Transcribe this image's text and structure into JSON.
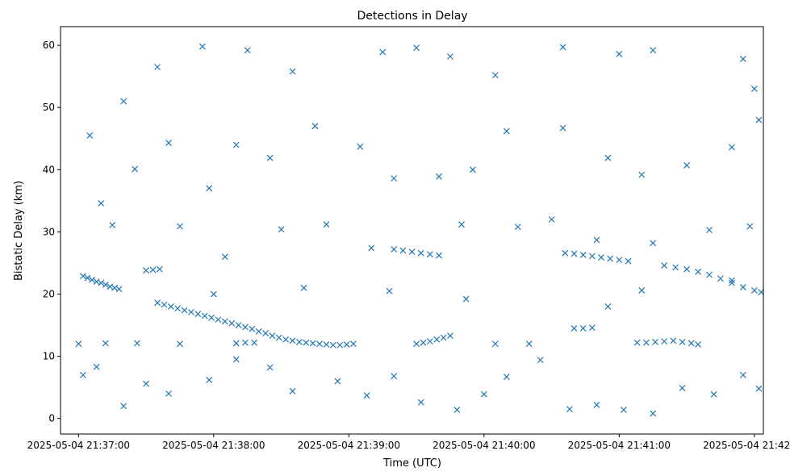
{
  "chart_data": {
    "type": "scatter",
    "title": "Detections in Delay",
    "xlabel": "Time (UTC)",
    "ylabel": "Bistatic Delay (km)",
    "marker": "x",
    "color": "#1f77b4",
    "grid": false,
    "xlim": [
      "2025-05-04 21:36:52",
      "2025-05-04 21:42:04"
    ],
    "ylim": [
      -2.5,
      63
    ],
    "xticks": [
      "2025-05-04 21:37:00",
      "2025-05-04 21:38:00",
      "2025-05-04 21:39:00",
      "2025-05-04 21:40:00",
      "2025-05-04 21:41:00",
      "2025-05-04 21:42:00"
    ],
    "yticks": [
      0,
      10,
      20,
      30,
      40,
      50,
      60
    ],
    "series": [
      {
        "points": [
          [
            "2025-05-04 21:37:02",
            22.9
          ],
          [
            "2025-05-04 21:37:04",
            22.6
          ],
          [
            "2025-05-04 21:37:06",
            22.3
          ],
          [
            "2025-05-04 21:37:08",
            22.0
          ],
          [
            "2025-05-04 21:37:10",
            21.8
          ],
          [
            "2025-05-04 21:37:12",
            21.5
          ],
          [
            "2025-05-04 21:37:14",
            21.2
          ],
          [
            "2025-05-04 21:37:16",
            21.0
          ],
          [
            "2025-05-04 21:37:18",
            20.8
          ],
          [
            "2025-05-04 21:37:35",
            18.6
          ],
          [
            "2025-05-04 21:37:38",
            18.3
          ],
          [
            "2025-05-04 21:37:41",
            18.0
          ],
          [
            "2025-05-04 21:37:44",
            17.7
          ],
          [
            "2025-05-04 21:37:47",
            17.4
          ],
          [
            "2025-05-04 21:37:50",
            17.1
          ],
          [
            "2025-05-04 21:37:53",
            16.8
          ],
          [
            "2025-05-04 21:37:56",
            16.5
          ],
          [
            "2025-05-04 21:37:59",
            16.2
          ],
          [
            "2025-05-04 21:38:02",
            15.9
          ],
          [
            "2025-05-04 21:38:05",
            15.6
          ],
          [
            "2025-05-04 21:38:08",
            15.3
          ],
          [
            "2025-05-04 21:38:11",
            15.0
          ],
          [
            "2025-05-04 21:38:14",
            14.7
          ],
          [
            "2025-05-04 21:38:17",
            14.4
          ],
          [
            "2025-05-04 21:38:20",
            14.0
          ],
          [
            "2025-05-04 21:38:23",
            13.7
          ],
          [
            "2025-05-04 21:38:26",
            13.3
          ],
          [
            "2025-05-04 21:38:29",
            13.0
          ],
          [
            "2025-05-04 21:38:32",
            12.7
          ],
          [
            "2025-05-04 21:38:35",
            12.5
          ],
          [
            "2025-05-04 21:38:38",
            12.3
          ],
          [
            "2025-05-04 21:38:41",
            12.2
          ],
          [
            "2025-05-04 21:38:44",
            12.1
          ],
          [
            "2025-05-04 21:38:47",
            12.0
          ],
          [
            "2025-05-04 21:38:50",
            11.9
          ],
          [
            "2025-05-04 21:38:53",
            11.8
          ],
          [
            "2025-05-04 21:38:56",
            11.8
          ],
          [
            "2025-05-04 21:38:59",
            11.9
          ],
          [
            "2025-05-04 21:39:02",
            12.0
          ],
          [
            "2025-05-04 21:39:30",
            12.0
          ],
          [
            "2025-05-04 21:39:33",
            12.2
          ],
          [
            "2025-05-04 21:39:36",
            12.4
          ],
          [
            "2025-05-04 21:39:39",
            12.7
          ],
          [
            "2025-05-04 21:39:42",
            13.0
          ],
          [
            "2025-05-04 21:39:45",
            13.3
          ],
          [
            "2025-05-04 21:37:30",
            23.8
          ],
          [
            "2025-05-04 21:37:33",
            23.9
          ],
          [
            "2025-05-04 21:37:36",
            24.0
          ],
          [
            "2025-05-04 21:38:10",
            12.1
          ],
          [
            "2025-05-04 21:38:14",
            12.2
          ],
          [
            "2025-05-04 21:38:18",
            12.2
          ],
          [
            "2025-05-04 21:39:20",
            27.2
          ],
          [
            "2025-05-04 21:39:24",
            27.0
          ],
          [
            "2025-05-04 21:39:28",
            26.8
          ],
          [
            "2025-05-04 21:39:32",
            26.6
          ],
          [
            "2025-05-04 21:39:36",
            26.4
          ],
          [
            "2025-05-04 21:39:40",
            26.2
          ],
          [
            "2025-05-04 21:40:36",
            26.6
          ],
          [
            "2025-05-04 21:40:40",
            26.5
          ],
          [
            "2025-05-04 21:40:44",
            26.3
          ],
          [
            "2025-05-04 21:40:48",
            26.1
          ],
          [
            "2025-05-04 21:40:52",
            25.9
          ],
          [
            "2025-05-04 21:40:56",
            25.7
          ],
          [
            "2025-05-04 21:41:00",
            25.5
          ],
          [
            "2025-05-04 21:41:04",
            25.3
          ],
          [
            "2025-05-04 21:40:40",
            14.5
          ],
          [
            "2025-05-04 21:40:44",
            14.5
          ],
          [
            "2025-05-04 21:40:48",
            14.6
          ],
          [
            "2025-05-04 21:41:08",
            12.2
          ],
          [
            "2025-05-04 21:41:12",
            12.2
          ],
          [
            "2025-05-04 21:41:16",
            12.3
          ],
          [
            "2025-05-04 21:41:20",
            12.4
          ],
          [
            "2025-05-04 21:41:24",
            12.5
          ],
          [
            "2025-05-04 21:41:28",
            12.3
          ],
          [
            "2025-05-04 21:41:32",
            12.1
          ],
          [
            "2025-05-04 21:41:20",
            24.6
          ],
          [
            "2025-05-04 21:41:25",
            24.3
          ],
          [
            "2025-05-04 21:41:30",
            24.0
          ],
          [
            "2025-05-04 21:41:35",
            23.6
          ],
          [
            "2025-05-04 21:41:40",
            23.1
          ],
          [
            "2025-05-04 21:41:45",
            22.5
          ],
          [
            "2025-05-04 21:41:50",
            21.8
          ],
          [
            "2025-05-04 21:41:55",
            21.1
          ],
          [
            "2025-05-04 21:42:00",
            20.6
          ],
          [
            "2025-05-04 21:42:03",
            20.3
          ],
          [
            "2025-05-04 21:37:05",
            45.5
          ],
          [
            "2025-05-04 21:37:20",
            51.0
          ],
          [
            "2025-05-04 21:37:35",
            56.5
          ],
          [
            "2025-05-04 21:37:55",
            59.8
          ],
          [
            "2025-05-04 21:38:15",
            59.2
          ],
          [
            "2025-05-04 21:38:35",
            55.8
          ],
          [
            "2025-05-04 21:39:15",
            58.9
          ],
          [
            "2025-05-04 21:39:30",
            59.6
          ],
          [
            "2025-05-04 21:39:45",
            58.2
          ],
          [
            "2025-05-04 21:40:05",
            55.2
          ],
          [
            "2025-05-04 21:40:35",
            59.7
          ],
          [
            "2025-05-04 21:41:00",
            58.6
          ],
          [
            "2025-05-04 21:41:15",
            59.2
          ],
          [
            "2025-05-04 21:41:55",
            57.8
          ],
          [
            "2025-05-04 21:42:00",
            53.0
          ],
          [
            "2025-05-04 21:37:10",
            34.6
          ],
          [
            "2025-05-04 21:37:25",
            40.1
          ],
          [
            "2025-05-04 21:37:40",
            44.3
          ],
          [
            "2025-05-04 21:37:58",
            37.0
          ],
          [
            "2025-05-04 21:38:10",
            44.0
          ],
          [
            "2025-05-04 21:38:25",
            41.9
          ],
          [
            "2025-05-04 21:38:45",
            47.0
          ],
          [
            "2025-05-04 21:39:05",
            43.7
          ],
          [
            "2025-05-04 21:39:20",
            38.6
          ],
          [
            "2025-05-04 21:39:40",
            38.9
          ],
          [
            "2025-05-04 21:39:55",
            40.0
          ],
          [
            "2025-05-04 21:40:10",
            46.2
          ],
          [
            "2025-05-04 21:40:35",
            46.7
          ],
          [
            "2025-05-04 21:40:55",
            41.9
          ],
          [
            "2025-05-04 21:41:10",
            39.2
          ],
          [
            "2025-05-04 21:41:30",
            40.7
          ],
          [
            "2025-05-04 21:41:50",
            43.6
          ],
          [
            "2025-05-04 21:42:02",
            48.0
          ],
          [
            "2025-05-04 21:37:15",
            31.1
          ],
          [
            "2025-05-04 21:37:45",
            30.9
          ],
          [
            "2025-05-04 21:38:05",
            26.0
          ],
          [
            "2025-05-04 21:38:30",
            30.4
          ],
          [
            "2025-05-04 21:38:50",
            31.2
          ],
          [
            "2025-05-04 21:39:10",
            27.4
          ],
          [
            "2025-05-04 21:39:50",
            31.2
          ],
          [
            "2025-05-04 21:40:15",
            30.8
          ],
          [
            "2025-05-04 21:40:30",
            32.0
          ],
          [
            "2025-05-04 21:40:50",
            28.7
          ],
          [
            "2025-05-04 21:41:15",
            28.2
          ],
          [
            "2025-05-04 21:41:40",
            30.3
          ],
          [
            "2025-05-04 21:41:58",
            30.9
          ],
          [
            "2025-05-04 21:37:02",
            7.0
          ],
          [
            "2025-05-04 21:37:08",
            8.3
          ],
          [
            "2025-05-04 21:37:20",
            2.0
          ],
          [
            "2025-05-04 21:37:30",
            5.6
          ],
          [
            "2025-05-04 21:37:40",
            4.0
          ],
          [
            "2025-05-04 21:37:58",
            6.2
          ],
          [
            "2025-05-04 21:38:10",
            9.5
          ],
          [
            "2025-05-04 21:38:25",
            8.2
          ],
          [
            "2025-05-04 21:38:35",
            4.4
          ],
          [
            "2025-05-04 21:38:55",
            6.0
          ],
          [
            "2025-05-04 21:39:08",
            3.7
          ],
          [
            "2025-05-04 21:39:20",
            6.8
          ],
          [
            "2025-05-04 21:39:32",
            2.6
          ],
          [
            "2025-05-04 21:39:48",
            1.4
          ],
          [
            "2025-05-04 21:40:00",
            3.9
          ],
          [
            "2025-05-04 21:40:10",
            6.7
          ],
          [
            "2025-05-04 21:40:25",
            9.4
          ],
          [
            "2025-05-04 21:40:38",
            1.5
          ],
          [
            "2025-05-04 21:40:50",
            2.2
          ],
          [
            "2025-05-04 21:41:02",
            1.4
          ],
          [
            "2025-05-04 21:41:15",
            0.8
          ],
          [
            "2025-05-04 21:41:28",
            4.9
          ],
          [
            "2025-05-04 21:41:42",
            3.9
          ],
          [
            "2025-05-04 21:41:55",
            7.0
          ],
          [
            "2025-05-04 21:42:02",
            4.8
          ],
          [
            "2025-05-04 21:37:00",
            12.0
          ],
          [
            "2025-05-04 21:37:12",
            12.1
          ],
          [
            "2025-05-04 21:37:26",
            12.1
          ],
          [
            "2025-05-04 21:37:45",
            12.0
          ],
          [
            "2025-05-04 21:38:00",
            20.0
          ],
          [
            "2025-05-04 21:38:40",
            21.0
          ],
          [
            "2025-05-04 21:39:18",
            20.5
          ],
          [
            "2025-05-04 21:39:52",
            19.2
          ],
          [
            "2025-05-04 21:40:05",
            12.0
          ],
          [
            "2025-05-04 21:40:20",
            12.0
          ],
          [
            "2025-05-04 21:40:55",
            18.0
          ],
          [
            "2025-05-04 21:41:10",
            20.6
          ],
          [
            "2025-05-04 21:41:35",
            11.9
          ],
          [
            "2025-05-04 21:41:50",
            22.2
          ]
        ]
      }
    ]
  }
}
